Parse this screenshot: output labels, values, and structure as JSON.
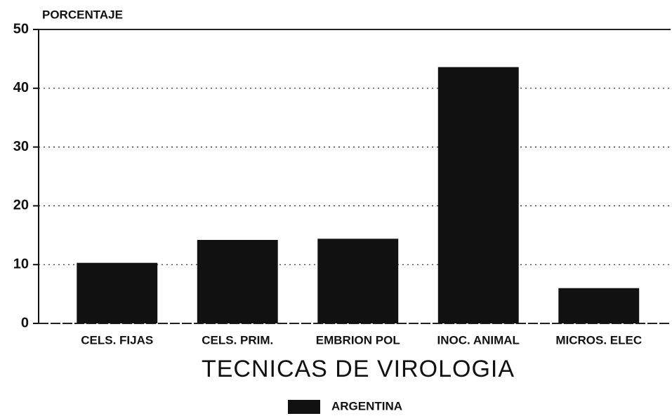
{
  "chart_data": {
    "type": "bar",
    "y_axis_label": "PORCENTAJE",
    "x_axis_label": "TECNICAS DE VIROLOGIA",
    "categories": [
      "CELS. FIJAS",
      "CELS. PRIM.",
      "EMBRION POL",
      "INOC. ANIMAL",
      "MICROS. ELEC"
    ],
    "series": [
      {
        "name": "ARGENTINA",
        "color": "#111111",
        "values": [
          10.3,
          14.2,
          14.4,
          43.6,
          6.0
        ]
      }
    ],
    "ylim": [
      0,
      50
    ],
    "yticks": [
      0,
      10,
      20,
      30,
      40,
      50
    ],
    "grid": true,
    "legend": "bottom"
  }
}
